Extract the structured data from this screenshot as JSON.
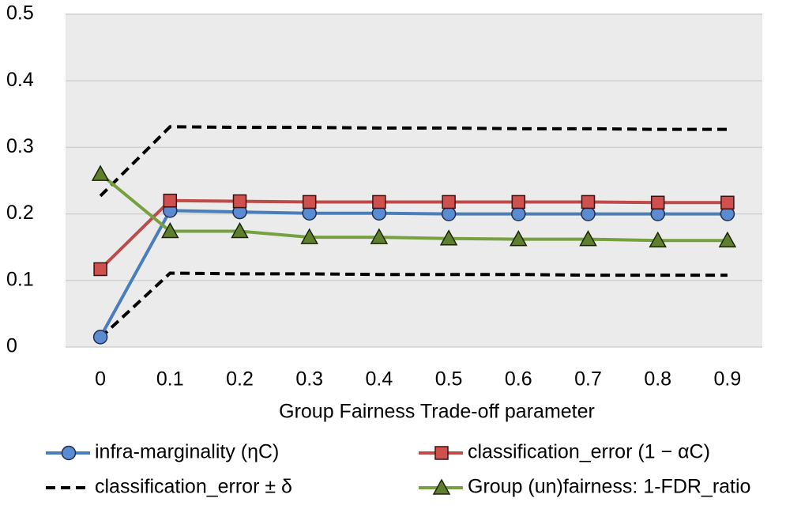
{
  "chart_data": {
    "type": "line",
    "x_label": "Group Fairness Trade-off parameter",
    "categories": [
      "0",
      "0.1",
      "0.2",
      "0.3",
      "0.4",
      "0.5",
      "0.6",
      "0.7",
      "0.8",
      "0.9"
    ],
    "ylim": [
      0,
      0.5
    ],
    "yticks": [
      0,
      0.1,
      0.2,
      0.3,
      0.4,
      0.5
    ],
    "grid": true,
    "legend": "bottom",
    "series": [
      {
        "name": "infra-marginality (ηC)",
        "color": "#4a7ebb",
        "marker": "circle",
        "marker_color": "#5b8bd0",
        "values": [
          0.015,
          0.205,
          0.203,
          0.201,
          0.201,
          0.2,
          0.2,
          0.2,
          0.2,
          0.2
        ]
      },
      {
        "name": "classification_error (1 − αC)",
        "color": "#be4b48",
        "marker": "square",
        "marker_color": "#d0504d",
        "values": [
          0.117,
          0.22,
          0.219,
          0.218,
          0.218,
          0.218,
          0.218,
          0.218,
          0.217,
          0.217
        ]
      },
      {
        "name": "classification_error ± δ",
        "color": "#000000",
        "dashed": true,
        "upper": [
          0.227,
          0.331,
          0.33,
          0.33,
          0.329,
          0.329,
          0.328,
          0.328,
          0.327,
          0.327
        ],
        "lower": [
          0.014,
          0.111,
          0.11,
          0.11,
          0.109,
          0.109,
          0.109,
          0.108,
          0.108,
          0.108
        ]
      },
      {
        "name": "Group (un)fairness: 1-FDR_ratio",
        "color": "#77a040",
        "marker": "triangle",
        "marker_color": "#5f7f2e",
        "values": [
          0.26,
          0.174,
          0.174,
          0.165,
          0.165,
          0.163,
          0.162,
          0.162,
          0.16,
          0.16
        ]
      }
    ]
  }
}
